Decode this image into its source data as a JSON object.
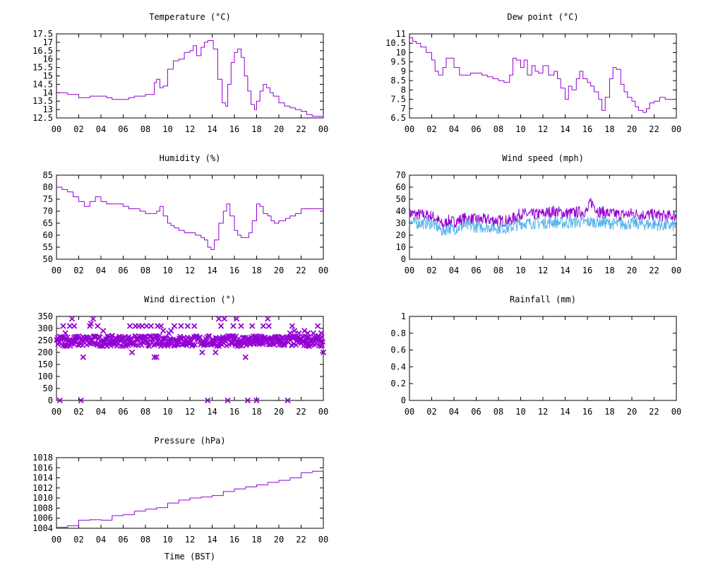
{
  "x_axis": {
    "tick_labels": [
      "00",
      "02",
      "04",
      "06",
      "08",
      "10",
      "12",
      "14",
      "16",
      "18",
      "20",
      "22",
      "00"
    ],
    "range_hours": [
      0,
      24
    ],
    "label": "Time (BST)"
  },
  "colors": {
    "primary": "#9400d3",
    "secondary": "#56b4e9",
    "axis": "#000000",
    "background": "#ffffff"
  },
  "chart_data": [
    {
      "id": "temperature",
      "type": "line",
      "title": "Temperature (°C)",
      "ylim": [
        12.5,
        17.5
      ],
      "y_ticks": [
        "12.5",
        "13",
        "13.5",
        "14",
        "14.5",
        "15",
        "15.5",
        "16",
        "16.5",
        "17",
        "17.5"
      ],
      "series": [
        {
          "color": "#9400d3",
          "x": [
            0,
            0.5,
            1,
            2,
            2.5,
            3,
            4,
            4.5,
            5,
            6,
            6.5,
            7,
            7.5,
            8,
            8.5,
            8.8,
            9,
            9.3,
            9.6,
            10,
            10.5,
            11,
            11.5,
            12,
            12.3,
            12.6,
            13,
            13.3,
            13.6,
            13.9,
            14.1,
            14.5,
            14.9,
            15.2,
            15.4,
            15.7,
            16,
            16.3,
            16.6,
            16.9,
            17.2,
            17.5,
            17.8,
            18,
            18.3,
            18.6,
            18.9,
            19.2,
            19.5,
            20,
            20.5,
            21,
            21.5,
            22,
            22.5,
            23,
            23.5,
            24
          ],
          "y": [
            14,
            14,
            13.9,
            13.7,
            13.7,
            13.8,
            13.8,
            13.7,
            13.6,
            13.6,
            13.7,
            13.8,
            13.8,
            13.9,
            13.9,
            14.6,
            14.8,
            14.3,
            14.4,
            15.4,
            15.9,
            16,
            16.4,
            16.5,
            16.8,
            16.2,
            16.7,
            17,
            17.1,
            17.1,
            16.6,
            14.8,
            13.4,
            13.2,
            14.5,
            15.8,
            16.4,
            16.6,
            16.1,
            15,
            14.1,
            13.3,
            13,
            13.5,
            14.1,
            14.5,
            14.3,
            14,
            13.8,
            13.4,
            13.2,
            13.1,
            13,
            12.9,
            12.7,
            12.6,
            12.6,
            12.7
          ]
        }
      ]
    },
    {
      "id": "dew_point",
      "type": "line",
      "title": "Dew point (°C)",
      "ylim": [
        6.5,
        11
      ],
      "y_ticks": [
        "6.5",
        "7",
        "7.5",
        "8",
        "8.5",
        "9",
        "9.5",
        "10",
        "10.5",
        "11"
      ],
      "series": [
        {
          "color": "#9400d3",
          "x": [
            0,
            0.3,
            0.6,
            1,
            1.5,
            2,
            2.3,
            2.6,
            3,
            3.3,
            3.6,
            4,
            4.5,
            5,
            5.5,
            6,
            6.5,
            7,
            7.5,
            8,
            8.5,
            9,
            9.3,
            9.6,
            10,
            10.3,
            10.6,
            11,
            11.3,
            11.6,
            12,
            12.5,
            13,
            13.3,
            13.6,
            14,
            14.3,
            14.6,
            15,
            15.3,
            15.6,
            16,
            16.3,
            16.6,
            17,
            17.3,
            17.6,
            18,
            18.3,
            18.6,
            19,
            19.3,
            19.6,
            20,
            20.3,
            20.6,
            21,
            21.3,
            21.6,
            22,
            22.5,
            23,
            23.5,
            24
          ],
          "y": [
            10.8,
            10.6,
            10.5,
            10.3,
            10,
            9.6,
            9,
            8.8,
            9.2,
            9.7,
            9.7,
            9.2,
            8.8,
            8.8,
            8.9,
            8.9,
            8.8,
            8.7,
            8.6,
            8.5,
            8.4,
            8.8,
            9.7,
            9.6,
            9.2,
            9.6,
            8.8,
            9.3,
            9,
            8.9,
            9.3,
            8.8,
            9,
            8.6,
            8.1,
            7.5,
            8.2,
            8,
            8.6,
            9,
            8.6,
            8.4,
            8.2,
            7.9,
            7.5,
            6.9,
            7.6,
            8.6,
            9.2,
            9.1,
            8.3,
            7.9,
            7.6,
            7.4,
            7.1,
            6.9,
            6.8,
            7,
            7.3,
            7.4,
            7.6,
            7.5,
            7.5,
            7.5
          ]
        }
      ]
    },
    {
      "id": "humidity",
      "type": "line",
      "title": "Humidity (%)",
      "ylim": [
        50,
        85
      ],
      "y_ticks": [
        "50",
        "55",
        "60",
        "65",
        "70",
        "75",
        "80",
        "85"
      ],
      "series": [
        {
          "color": "#9400d3",
          "x": [
            0,
            0.5,
            1,
            1.5,
            2,
            2.5,
            3,
            3.5,
            4,
            4.5,
            5,
            5.5,
            6,
            6.5,
            7,
            7.5,
            8,
            8.5,
            9,
            9.3,
            9.6,
            10,
            10.3,
            10.6,
            11,
            11.5,
            12,
            12.5,
            13,
            13.3,
            13.6,
            13.9,
            14.2,
            14.6,
            15,
            15.3,
            15.6,
            16,
            16.3,
            16.6,
            17,
            17.3,
            17.6,
            18,
            18.3,
            18.6,
            19,
            19.3,
            19.6,
            20,
            20.3,
            20.6,
            21,
            21.5,
            22,
            22.5,
            23,
            23.5,
            24
          ],
          "y": [
            80,
            79,
            78,
            76,
            74,
            72,
            74,
            76,
            74,
            73,
            73,
            73,
            72,
            71,
            71,
            70,
            69,
            69,
            70,
            72,
            68,
            65,
            64,
            63,
            62,
            61,
            61,
            60,
            59,
            58,
            55,
            54,
            58,
            65,
            70,
            73,
            68,
            62,
            60,
            59,
            59,
            61,
            66,
            73,
            72,
            69,
            68,
            66,
            65,
            66,
            66,
            67,
            68,
            69,
            71,
            71,
            71,
            71,
            71
          ]
        }
      ]
    },
    {
      "id": "wind_speed",
      "type": "line",
      "title": "Wind speed (mph)",
      "ylim": [
        0,
        70
      ],
      "y_ticks": [
        "0",
        "10",
        "20",
        "30",
        "40",
        "50",
        "60",
        "70"
      ],
      "noisy": true,
      "series": [
        {
          "color": "#9400d3",
          "x": [
            0,
            1,
            2,
            2.5,
            3,
            3.5,
            4,
            5,
            6,
            7,
            8,
            9,
            9.5,
            10,
            11,
            12,
            13,
            14,
            15,
            16,
            16.3,
            17,
            18,
            19,
            20,
            21,
            22,
            23,
            24
          ],
          "y": [
            38,
            37,
            36,
            33,
            28,
            32,
            31,
            34,
            33,
            33,
            32,
            32,
            35,
            38,
            37,
            38,
            40,
            38,
            39,
            40,
            48,
            40,
            38,
            37,
            38,
            37,
            37,
            36,
            36
          ]
        },
        {
          "color": "#56b4e9",
          "x": [
            0,
            1,
            2,
            2.5,
            3,
            3.5,
            4,
            5,
            6,
            7,
            8,
            9,
            9.5,
            10,
            11,
            12,
            13,
            14,
            15,
            16,
            17,
            18,
            19,
            20,
            21,
            22,
            23,
            24
          ],
          "y": [
            31,
            30,
            30,
            27,
            23,
            26,
            25,
            28,
            27,
            27,
            26,
            26,
            28,
            30,
            30,
            30,
            31,
            30,
            31,
            31,
            31,
            30,
            29,
            30,
            29,
            29,
            28,
            28
          ]
        }
      ]
    },
    {
      "id": "wind_direction",
      "type": "scatter",
      "title": "Wind direction (°)",
      "ylim": [
        0,
        350
      ],
      "y_ticks": [
        "0",
        "50",
        "100",
        "150",
        "200",
        "250",
        "300",
        "350"
      ],
      "dense_band": [
        225,
        270
      ],
      "series": [
        {
          "color": "#9400d3",
          "marker": "x",
          "x": [
            0.3,
            0.6,
            0.8,
            1.2,
            1.4,
            1.6,
            2.2,
            2.4,
            3,
            3.1,
            3.3,
            3.7,
            4.2,
            6.6,
            6.8,
            7.1,
            7.4,
            7.7,
            8.1,
            8.5,
            8.8,
            9,
            9.1,
            9.4,
            9.6,
            10.1,
            10.3,
            10.6,
            11.2,
            11.8,
            12.4,
            13.1,
            13.6,
            14.3,
            14.6,
            14.8,
            15.1,
            15.4,
            15.9,
            16.2,
            16.6,
            17,
            17.2,
            17.6,
            18,
            18.6,
            19,
            19.1,
            20.8,
            21,
            21.2,
            21.4,
            21.8,
            22.3,
            22.6,
            23.1,
            23.5,
            23.8,
            24
          ],
          "y": [
            0,
            310,
            280,
            310,
            340,
            310,
            0,
            180,
            310,
            320,
            340,
            310,
            290,
            310,
            200,
            310,
            310,
            310,
            310,
            310,
            180,
            180,
            310,
            310,
            290,
            280,
            290,
            310,
            310,
            310,
            310,
            200,
            0,
            200,
            340,
            310,
            340,
            0,
            310,
            340,
            310,
            180,
            0,
            310,
            0,
            310,
            340,
            310,
            0,
            280,
            310,
            290,
            280,
            290,
            280,
            280,
            310,
            280,
            200
          ]
        }
      ]
    },
    {
      "id": "rainfall",
      "type": "line",
      "title": "Rainfall (mm)",
      "ylim": [
        0,
        1
      ],
      "y_ticks": [
        "0",
        "0.2",
        "0.4",
        "0.6",
        "0.8",
        "1"
      ],
      "series": []
    },
    {
      "id": "pressure",
      "type": "line",
      "title": "Pressure (hPa)",
      "ylim": [
        1004,
        1018
      ],
      "y_ticks": [
        "1004",
        "1006",
        "1008",
        "1010",
        "1012",
        "1014",
        "1016",
        "1018"
      ],
      "xlabel": "Time (BST)",
      "series": [
        {
          "color": "#9400d3",
          "x": [
            0,
            1,
            2,
            3,
            4,
            5,
            6,
            7,
            8,
            9,
            10,
            11,
            12,
            13,
            14,
            15,
            16,
            17,
            18,
            19,
            20,
            21,
            22,
            23,
            24
          ],
          "y": [
            1004.2,
            1004.5,
            1005.6,
            1005.7,
            1005.6,
            1006.5,
            1006.7,
            1007.4,
            1007.8,
            1008.1,
            1009,
            1009.6,
            1010,
            1010.2,
            1010.5,
            1011.3,
            1011.8,
            1012.2,
            1012.6,
            1013.1,
            1013.5,
            1014,
            1015,
            1015.3,
            1016.1
          ]
        }
      ]
    }
  ]
}
